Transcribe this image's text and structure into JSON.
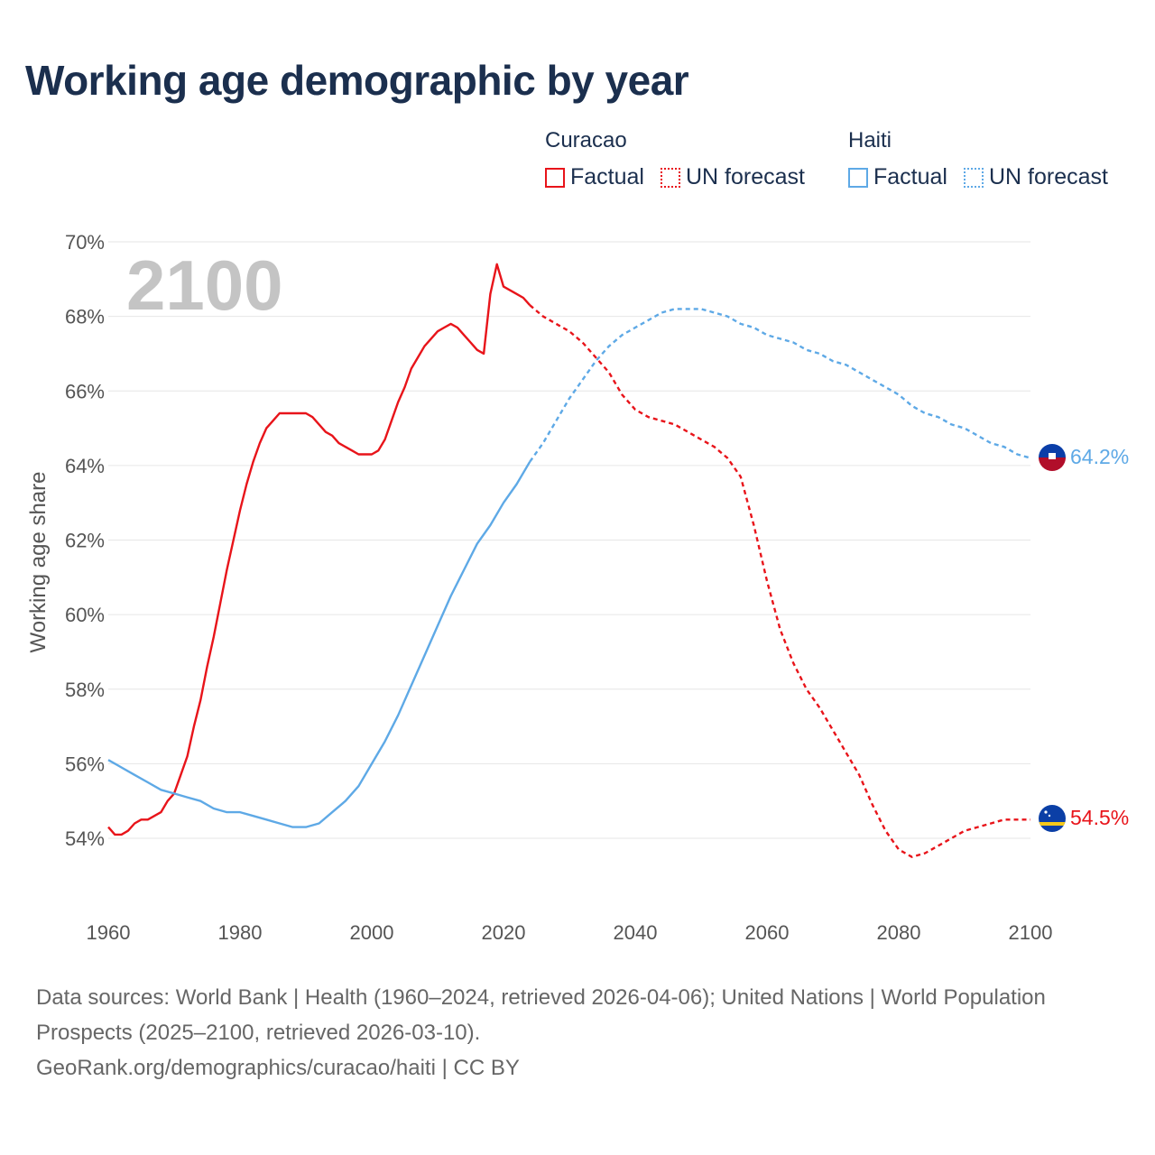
{
  "title": "Working age demographic by year",
  "legend": {
    "groups": [
      {
        "name": "Curacao",
        "color": "#e8141a",
        "factual_label": "Factual",
        "forecast_label": "UN forecast"
      },
      {
        "name": "Haiti",
        "color": "#5ea9e6",
        "factual_label": "Factual",
        "forecast_label": "UN forecast"
      }
    ]
  },
  "footer": {
    "sources": "Data sources: World Bank | Health (1960–2024, retrieved 2026-04-06); United Nations | World Population Prospects (2025–2100, retrieved 2026-03-10).",
    "credit": "GeoRank.org/demographics/curacao/haiti | CC BY"
  },
  "chart_data": {
    "type": "line",
    "title": "Working age demographic by year",
    "ylabel": "Working age share",
    "xlabel": "",
    "xlim": [
      1960,
      2100
    ],
    "ylim": [
      52,
      70
    ],
    "x_ticks": [
      1960,
      1980,
      2000,
      2020,
      2040,
      2060,
      2080,
      2100
    ],
    "x_tick_labels": [
      "1960",
      "1980",
      "2000",
      "2020",
      "2040",
      "2060",
      "2080",
      "2100"
    ],
    "y_ticks": [
      54,
      56,
      58,
      60,
      62,
      64,
      66,
      68,
      70
    ],
    "y_tick_labels": [
      "54%",
      "56%",
      "58%",
      "60%",
      "62%",
      "64%",
      "66%",
      "68%",
      "70%"
    ],
    "grid": true,
    "year_label": "2100",
    "forecast_start": 2024,
    "series": [
      {
        "name": "Curacao",
        "color": "#e8141a",
        "flag": "curacao-flag-icon",
        "end_label": "54.5%",
        "x": [
          1960,
          1961,
          1962,
          1963,
          1964,
          1965,
          1966,
          1967,
          1968,
          1969,
          1970,
          1971,
          1972,
          1973,
          1974,
          1975,
          1976,
          1977,
          1978,
          1979,
          1980,
          1981,
          1982,
          1983,
          1984,
          1985,
          1986,
          1987,
          1988,
          1989,
          1990,
          1991,
          1992,
          1993,
          1994,
          1995,
          1996,
          1997,
          1998,
          1999,
          2000,
          2001,
          2002,
          2003,
          2004,
          2005,
          2006,
          2007,
          2008,
          2009,
          2010,
          2011,
          2012,
          2013,
          2014,
          2015,
          2016,
          2017,
          2018,
          2019,
          2020,
          2021,
          2022,
          2023,
          2024,
          2026,
          2028,
          2030,
          2032,
          2034,
          2036,
          2038,
          2040,
          2042,
          2044,
          2046,
          2048,
          2050,
          2052,
          2054,
          2056,
          2058,
          2060,
          2062,
          2064,
          2066,
          2068,
          2070,
          2072,
          2074,
          2076,
          2078,
          2080,
          2082,
          2084,
          2086,
          2088,
          2090,
          2092,
          2094,
          2096,
          2098,
          2100
        ],
        "values": [
          54.3,
          54.1,
          54.1,
          54.2,
          54.4,
          54.5,
          54.5,
          54.6,
          54.7,
          55.0,
          55.2,
          55.7,
          56.2,
          57.0,
          57.7,
          58.6,
          59.4,
          60.3,
          61.2,
          62.0,
          62.8,
          63.5,
          64.1,
          64.6,
          65.0,
          65.2,
          65.4,
          65.4,
          65.4,
          65.4,
          65.4,
          65.3,
          65.1,
          64.9,
          64.8,
          64.6,
          64.5,
          64.4,
          64.3,
          64.3,
          64.3,
          64.4,
          64.7,
          65.2,
          65.7,
          66.1,
          66.6,
          66.9,
          67.2,
          67.4,
          67.6,
          67.7,
          67.8,
          67.7,
          67.5,
          67.3,
          67.1,
          67.0,
          68.6,
          69.4,
          68.8,
          68.7,
          68.6,
          68.5,
          68.3,
          68.0,
          67.8,
          67.6,
          67.3,
          66.9,
          66.5,
          65.9,
          65.5,
          65.3,
          65.2,
          65.1,
          64.9,
          64.7,
          64.5,
          64.2,
          63.7,
          62.4,
          60.9,
          59.6,
          58.7,
          58.0,
          57.5,
          56.9,
          56.3,
          55.7,
          54.9,
          54.2,
          53.7,
          53.5,
          53.6,
          53.8,
          54.0,
          54.2,
          54.3,
          54.4,
          54.5,
          54.5,
          54.5
        ]
      },
      {
        "name": "Haiti",
        "color": "#5ea9e6",
        "flag": "haiti-flag-icon",
        "end_label": "64.2%",
        "x": [
          1960,
          1962,
          1964,
          1966,
          1968,
          1970,
          1972,
          1974,
          1976,
          1978,
          1980,
          1982,
          1984,
          1986,
          1988,
          1990,
          1992,
          1994,
          1996,
          1998,
          2000,
          2002,
          2004,
          2006,
          2008,
          2010,
          2012,
          2014,
          2016,
          2018,
          2020,
          2022,
          2024,
          2026,
          2028,
          2030,
          2032,
          2034,
          2036,
          2038,
          2040,
          2042,
          2044,
          2046,
          2048,
          2050,
          2052,
          2054,
          2056,
          2058,
          2060,
          2062,
          2064,
          2066,
          2068,
          2070,
          2072,
          2074,
          2076,
          2078,
          2080,
          2082,
          2084,
          2086,
          2088,
          2090,
          2092,
          2094,
          2096,
          2098,
          2100
        ],
        "values": [
          56.1,
          55.9,
          55.7,
          55.5,
          55.3,
          55.2,
          55.1,
          55.0,
          54.8,
          54.7,
          54.7,
          54.6,
          54.5,
          54.4,
          54.3,
          54.3,
          54.4,
          54.7,
          55.0,
          55.4,
          56.0,
          56.6,
          57.3,
          58.1,
          58.9,
          59.7,
          60.5,
          61.2,
          61.9,
          62.4,
          63.0,
          63.5,
          64.1,
          64.6,
          65.2,
          65.8,
          66.3,
          66.8,
          67.2,
          67.5,
          67.7,
          67.9,
          68.1,
          68.2,
          68.2,
          68.2,
          68.1,
          68.0,
          67.8,
          67.7,
          67.5,
          67.4,
          67.3,
          67.1,
          67.0,
          66.8,
          66.7,
          66.5,
          66.3,
          66.1,
          65.9,
          65.6,
          65.4,
          65.3,
          65.1,
          65.0,
          64.8,
          64.6,
          64.5,
          64.3,
          64.2
        ]
      }
    ]
  }
}
